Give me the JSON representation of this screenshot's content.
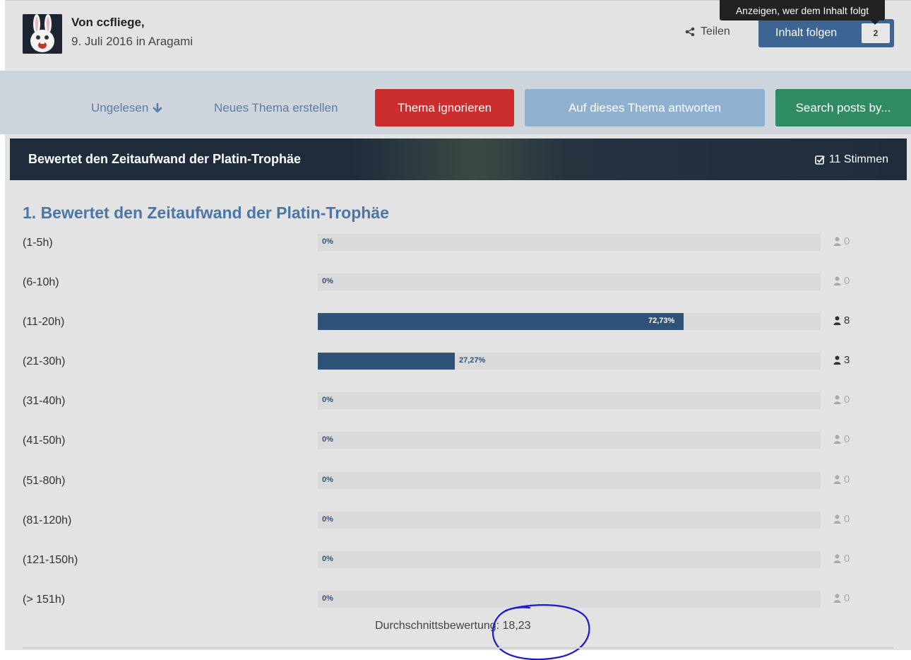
{
  "header": {
    "author_prefix": "Von",
    "author_name": "ccfliege,",
    "date": "9. Juli 2016",
    "in_word": "in",
    "forum": "Aragami",
    "share_label": "Teilen",
    "follow_label": "Inhalt folgen",
    "follow_count": "2",
    "tooltip": "Anzeigen, wer dem Inhalt folgt"
  },
  "actions": {
    "unread": "Ungelesen",
    "new_topic": "Neues Thema erstellen",
    "ignore": "Thema ignorieren",
    "reply": "Auf dieses Thema antworten",
    "search": "Search posts by..."
  },
  "poll": {
    "title": "Bewertet den Zeitaufwand der Platin-Trophäe",
    "votes_label": "11 Stimmen",
    "question": "1. Bewertet den Zeitaufwand der Platin-Trophäe",
    "average_label": "Durchschnittsbewertung: 18,23",
    "options": [
      {
        "label": "(1-5h)",
        "percent": 0,
        "percent_text": "0%",
        "votes": "0"
      },
      {
        "label": "(6-10h)",
        "percent": 0,
        "percent_text": "0%",
        "votes": "0"
      },
      {
        "label": "(11-20h)",
        "percent": 72.73,
        "percent_text": "72,73%",
        "votes": "8"
      },
      {
        "label": "(21-30h)",
        "percent": 27.27,
        "percent_text": "27,27%",
        "votes": "3"
      },
      {
        "label": "(31-40h)",
        "percent": 0,
        "percent_text": "0%",
        "votes": "0"
      },
      {
        "label": "(41-50h)",
        "percent": 0,
        "percent_text": "0%",
        "votes": "0"
      },
      {
        "label": "(51-80h)",
        "percent": 0,
        "percent_text": "0%",
        "votes": "0"
      },
      {
        "label": "(81-120h)",
        "percent": 0,
        "percent_text": "0%",
        "votes": "0"
      },
      {
        "label": "(121-150h)",
        "percent": 0,
        "percent_text": "0%",
        "votes": "0"
      },
      {
        "label": "(> 151h)",
        "percent": 0,
        "percent_text": "0%",
        "votes": "0"
      }
    ]
  },
  "colors": {
    "follow": "#3d6594",
    "ignore": "#cc2d2d",
    "reply": "#8fb0cf",
    "search": "#2e8b62",
    "bar": "#2f5278",
    "title_blue": "#4a77a8",
    "annotation": "#1a1ad0"
  },
  "icons": {
    "share": "share-icon",
    "unread": "arrow-down-icon",
    "votes": "checkbox-icon",
    "voter": "user-icon"
  }
}
